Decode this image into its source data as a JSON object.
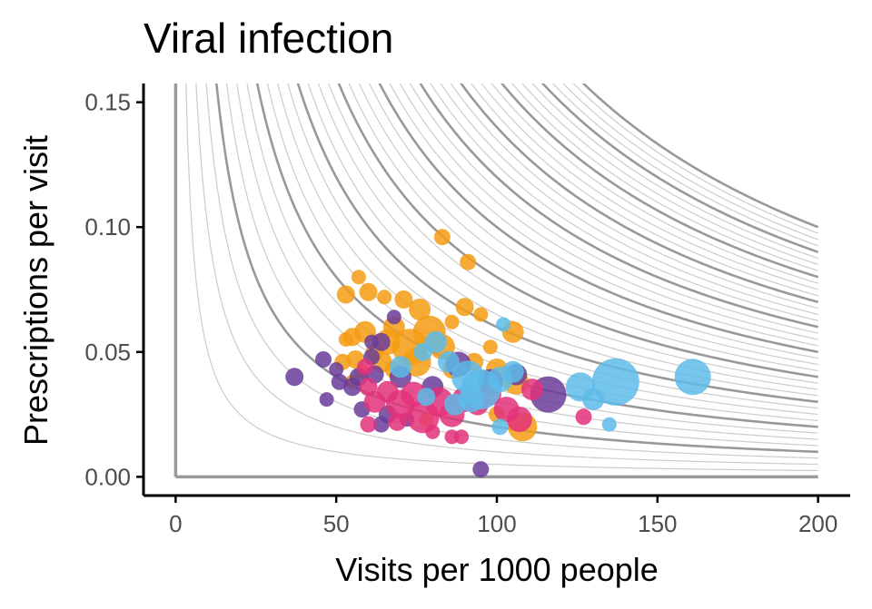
{
  "chart_data": {
    "type": "scatter",
    "title": "Viral infection",
    "xlabel": "Visits per 1000 people",
    "ylabel": "Prescriptions per visit",
    "xlim": [
      -10,
      210
    ],
    "ylim": [
      -0.0075,
      0.1575
    ],
    "x_ticks": [
      "0",
      "50",
      "100",
      "150",
      "200"
    ],
    "y_ticks": [
      "0.00",
      "0.05",
      "0.10",
      "0.15"
    ],
    "grid": false,
    "legend": "none",
    "reference_lines": {
      "vertical_at_x": 0,
      "horizontal_at_y": 0,
      "isoline_products_light": [
        0.5,
        1.0,
        1.5,
        2.5,
        3.0,
        3.5,
        4.5,
        5.0,
        5.5,
        6.5,
        7.0,
        7.5,
        8.5,
        9.0,
        9.5,
        10.5,
        11.0,
        11.5,
        12.5,
        13.0,
        13.5,
        14.5,
        15.0,
        15.5,
        16.5,
        17.0,
        17.5,
        18.5,
        19.0,
        19.5
      ],
      "isoline_products_dark": [
        2,
        4,
        6,
        8,
        10,
        12,
        14,
        16,
        18,
        20
      ]
    },
    "colors": {
      "orange": "#f39c12",
      "purple": "#6a3d9a",
      "pink": "#e3317a",
      "blue": "#5dbbe9",
      "guide_light": "#cccccc",
      "guide_dark": "#999999"
    },
    "points": [
      {
        "x": 83,
        "y": 0.096,
        "s": 9,
        "c": "orange"
      },
      {
        "x": 91,
        "y": 0.086,
        "s": 9,
        "c": "orange"
      },
      {
        "x": 57,
        "y": 0.08,
        "s": 8,
        "c": "orange"
      },
      {
        "x": 53,
        "y": 0.073,
        "s": 10,
        "c": "orange"
      },
      {
        "x": 60,
        "y": 0.074,
        "s": 10,
        "c": "orange"
      },
      {
        "x": 65,
        "y": 0.072,
        "s": 8,
        "c": "orange"
      },
      {
        "x": 71,
        "y": 0.071,
        "s": 10,
        "c": "orange"
      },
      {
        "x": 76,
        "y": 0.067,
        "s": 12,
        "c": "orange"
      },
      {
        "x": 90,
        "y": 0.068,
        "s": 10,
        "c": "orange"
      },
      {
        "x": 95,
        "y": 0.065,
        "s": 8,
        "c": "orange"
      },
      {
        "x": 86,
        "y": 0.062,
        "s": 8,
        "c": "orange"
      },
      {
        "x": 79,
        "y": 0.058,
        "s": 18,
        "c": "orange"
      },
      {
        "x": 68,
        "y": 0.06,
        "s": 12,
        "c": "orange"
      },
      {
        "x": 59,
        "y": 0.058,
        "s": 12,
        "c": "orange"
      },
      {
        "x": 55,
        "y": 0.056,
        "s": 10,
        "c": "orange"
      },
      {
        "x": 53,
        "y": 0.055,
        "s": 8,
        "c": "orange"
      },
      {
        "x": 66,
        "y": 0.054,
        "s": 14,
        "c": "orange"
      },
      {
        "x": 73,
        "y": 0.052,
        "s": 20,
        "c": "orange"
      },
      {
        "x": 83,
        "y": 0.052,
        "s": 14,
        "c": "orange"
      },
      {
        "x": 98,
        "y": 0.052,
        "s": 8,
        "c": "orange"
      },
      {
        "x": 105,
        "y": 0.058,
        "s": 12,
        "c": "orange"
      },
      {
        "x": 62,
        "y": 0.05,
        "s": 10,
        "c": "orange"
      },
      {
        "x": 56,
        "y": 0.047,
        "s": 10,
        "c": "orange"
      },
      {
        "x": 52,
        "y": 0.046,
        "s": 9,
        "c": "orange"
      },
      {
        "x": 64,
        "y": 0.046,
        "s": 12,
        "c": "orange"
      },
      {
        "x": 75,
        "y": 0.046,
        "s": 16,
        "c": "orange"
      },
      {
        "x": 93,
        "y": 0.046,
        "s": 10,
        "c": "orange"
      },
      {
        "x": 100,
        "y": 0.043,
        "s": 12,
        "c": "orange"
      },
      {
        "x": 58,
        "y": 0.042,
        "s": 8,
        "c": "orange"
      },
      {
        "x": 68,
        "y": 0.043,
        "s": 10,
        "c": "orange"
      },
      {
        "x": 86,
        "y": 0.043,
        "s": 10,
        "c": "orange"
      },
      {
        "x": 96,
        "y": 0.04,
        "s": 8,
        "c": "orange"
      },
      {
        "x": 106,
        "y": 0.038,
        "s": 14,
        "c": "orange"
      },
      {
        "x": 108,
        "y": 0.02,
        "s": 16,
        "c": "orange"
      },
      {
        "x": 100,
        "y": 0.025,
        "s": 9,
        "c": "orange"
      },
      {
        "x": 78,
        "y": 0.023,
        "s": 8,
        "c": "orange"
      },
      {
        "x": 55,
        "y": 0.038,
        "s": 8,
        "c": "orange"
      },
      {
        "x": 68,
        "y": 0.064,
        "s": 8,
        "c": "purple"
      },
      {
        "x": 64,
        "y": 0.054,
        "s": 10,
        "c": "purple"
      },
      {
        "x": 61,
        "y": 0.054,
        "s": 8,
        "c": "purple"
      },
      {
        "x": 61,
        "y": 0.048,
        "s": 9,
        "c": "purple"
      },
      {
        "x": 46,
        "y": 0.047,
        "s": 9,
        "c": "purple"
      },
      {
        "x": 37,
        "y": 0.04,
        "s": 10,
        "c": "purple"
      },
      {
        "x": 50,
        "y": 0.043,
        "s": 8,
        "c": "purple"
      },
      {
        "x": 51,
        "y": 0.038,
        "s": 9,
        "c": "purple"
      },
      {
        "x": 55,
        "y": 0.036,
        "s": 10,
        "c": "purple"
      },
      {
        "x": 57,
        "y": 0.04,
        "s": 10,
        "c": "purple"
      },
      {
        "x": 62,
        "y": 0.041,
        "s": 10,
        "c": "purple"
      },
      {
        "x": 70,
        "y": 0.04,
        "s": 12,
        "c": "purple"
      },
      {
        "x": 80,
        "y": 0.036,
        "s": 12,
        "c": "purple"
      },
      {
        "x": 88,
        "y": 0.045,
        "s": 14,
        "c": "purple"
      },
      {
        "x": 98,
        "y": 0.038,
        "s": 14,
        "c": "purple"
      },
      {
        "x": 106,
        "y": 0.041,
        "s": 12,
        "c": "purple"
      },
      {
        "x": 116,
        "y": 0.033,
        "s": 20,
        "c": "purple"
      },
      {
        "x": 47,
        "y": 0.031,
        "s": 8,
        "c": "purple"
      },
      {
        "x": 58,
        "y": 0.027,
        "s": 9,
        "c": "purple"
      },
      {
        "x": 66,
        "y": 0.025,
        "s": 10,
        "c": "purple"
      },
      {
        "x": 72,
        "y": 0.023,
        "s": 8,
        "c": "purple"
      },
      {
        "x": 64,
        "y": 0.021,
        "s": 9,
        "c": "purple"
      },
      {
        "x": 95,
        "y": 0.003,
        "s": 9,
        "c": "purple"
      },
      {
        "x": 60,
        "y": 0.036,
        "s": 10,
        "c": "pink"
      },
      {
        "x": 62,
        "y": 0.03,
        "s": 12,
        "c": "pink"
      },
      {
        "x": 66,
        "y": 0.034,
        "s": 12,
        "c": "pink"
      },
      {
        "x": 70,
        "y": 0.029,
        "s": 16,
        "c": "pink"
      },
      {
        "x": 74,
        "y": 0.033,
        "s": 14,
        "c": "pink"
      },
      {
        "x": 77,
        "y": 0.024,
        "s": 18,
        "c": "pink"
      },
      {
        "x": 82,
        "y": 0.03,
        "s": 16,
        "c": "pink"
      },
      {
        "x": 86,
        "y": 0.025,
        "s": 14,
        "c": "pink"
      },
      {
        "x": 90,
        "y": 0.031,
        "s": 14,
        "c": "pink"
      },
      {
        "x": 94,
        "y": 0.029,
        "s": 12,
        "c": "pink"
      },
      {
        "x": 98,
        "y": 0.033,
        "s": 12,
        "c": "pink"
      },
      {
        "x": 103,
        "y": 0.027,
        "s": 14,
        "c": "pink"
      },
      {
        "x": 107,
        "y": 0.023,
        "s": 14,
        "c": "pink"
      },
      {
        "x": 111,
        "y": 0.035,
        "s": 12,
        "c": "pink"
      },
      {
        "x": 60,
        "y": 0.021,
        "s": 9,
        "c": "pink"
      },
      {
        "x": 69,
        "y": 0.022,
        "s": 10,
        "c": "pink"
      },
      {
        "x": 80,
        "y": 0.018,
        "s": 8,
        "c": "pink"
      },
      {
        "x": 86,
        "y": 0.016,
        "s": 8,
        "c": "pink"
      },
      {
        "x": 89,
        "y": 0.016,
        "s": 8,
        "c": "pink"
      },
      {
        "x": 127,
        "y": 0.024,
        "s": 9,
        "c": "pink"
      },
      {
        "x": 59,
        "y": 0.044,
        "s": 9,
        "c": "pink"
      },
      {
        "x": 102,
        "y": 0.061,
        "s": 8,
        "c": "blue"
      },
      {
        "x": 81,
        "y": 0.054,
        "s": 12,
        "c": "blue"
      },
      {
        "x": 77,
        "y": 0.05,
        "s": 10,
        "c": "blue"
      },
      {
        "x": 85,
        "y": 0.046,
        "s": 12,
        "c": "blue"
      },
      {
        "x": 70,
        "y": 0.044,
        "s": 12,
        "c": "blue"
      },
      {
        "x": 91,
        "y": 0.04,
        "s": 18,
        "c": "blue"
      },
      {
        "x": 95,
        "y": 0.035,
        "s": 22,
        "c": "blue"
      },
      {
        "x": 101,
        "y": 0.039,
        "s": 14,
        "c": "blue"
      },
      {
        "x": 105,
        "y": 0.042,
        "s": 12,
        "c": "blue"
      },
      {
        "x": 92,
        "y": 0.031,
        "s": 14,
        "c": "blue"
      },
      {
        "x": 87,
        "y": 0.029,
        "s": 12,
        "c": "blue"
      },
      {
        "x": 78,
        "y": 0.032,
        "s": 10,
        "c": "blue"
      },
      {
        "x": 126,
        "y": 0.036,
        "s": 16,
        "c": "blue"
      },
      {
        "x": 130,
        "y": 0.031,
        "s": 12,
        "c": "blue"
      },
      {
        "x": 137,
        "y": 0.038,
        "s": 26,
        "c": "blue"
      },
      {
        "x": 161,
        "y": 0.04,
        "s": 20,
        "c": "blue"
      },
      {
        "x": 135,
        "y": 0.021,
        "s": 8,
        "c": "blue"
      },
      {
        "x": 101,
        "y": 0.02,
        "s": 9,
        "c": "blue"
      }
    ]
  }
}
